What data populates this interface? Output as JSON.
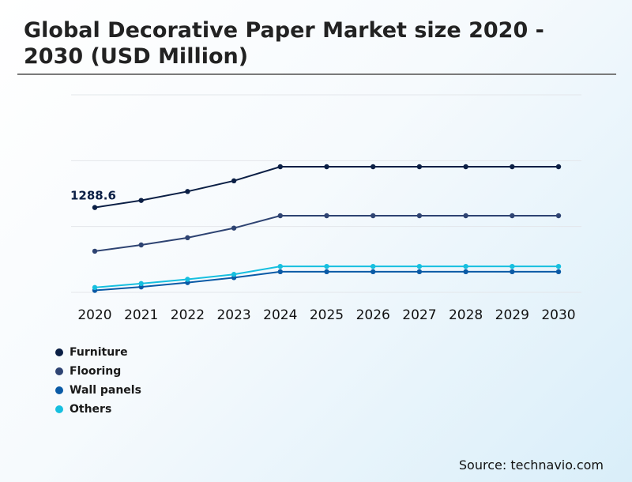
{
  "title": "Global Decorative Paper Market size 2020 - 2030 (USD Million)",
  "source": "Source: technavio.com",
  "chart_data": {
    "type": "line",
    "x": [
      "2020",
      "2021",
      "2022",
      "2023",
      "2024",
      "2025",
      "2026",
      "2027",
      "2028",
      "2029",
      "2030"
    ],
    "ylim": [
      0,
      3000
    ],
    "grid": true,
    "legend_position": "bottom-left",
    "series": [
      {
        "name": "Furniture",
        "color": "#0b1f45",
        "values": [
          1288.6,
          1396,
          1532,
          1694,
          1908,
          1908,
          1908,
          1908,
          1908,
          1908,
          1908
        ]
      },
      {
        "name": "Flooring",
        "color": "#2e4372",
        "values": [
          625,
          720,
          830,
          976,
          1164,
          1164,
          1164,
          1164,
          1164,
          1164,
          1164
        ]
      },
      {
        "name": "Wall panels",
        "color": "#0a5aa6",
        "values": [
          30,
          82,
          148,
          224,
          314,
          314,
          314,
          314,
          314,
          314,
          314
        ]
      },
      {
        "name": "Others",
        "color": "#16bfdf",
        "values": [
          74,
          134,
          198,
          273,
          394,
          394,
          394,
          394,
          394,
          394,
          394
        ]
      }
    ],
    "data_labels": [
      {
        "series": 0,
        "index": 0,
        "text": "1288.6"
      }
    ]
  }
}
